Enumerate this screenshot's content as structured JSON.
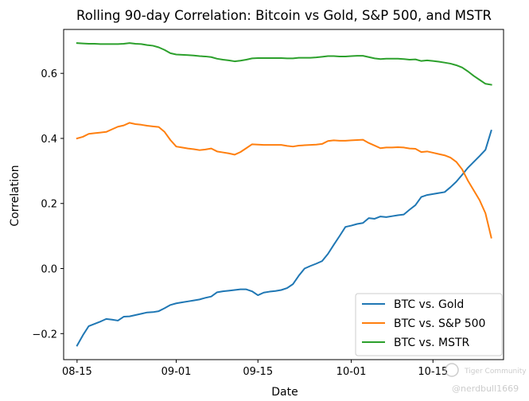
{
  "chart_data": {
    "type": "line",
    "title": "Rolling 90-day Correlation: Bitcoin vs Gold, S&P 500, and MSTR",
    "xlabel": "Date",
    "ylabel": "Correlation",
    "xlim": [
      -2.3,
      73.1
    ],
    "ylim": [
      -0.28,
      0.735
    ],
    "xticks": [
      {
        "value": 0,
        "label": "08-15"
      },
      {
        "value": 17,
        "label": "09-01"
      },
      {
        "value": 31,
        "label": "09-15"
      },
      {
        "value": 47,
        "label": "10-01"
      },
      {
        "value": 61,
        "label": "10-15"
      }
    ],
    "yticks": [
      {
        "value": -0.2,
        "label": "−0.2"
      },
      {
        "value": 0.0,
        "label": "0.0"
      },
      {
        "value": 0.2,
        "label": "0.2"
      },
      {
        "value": 0.4,
        "label": "0.4"
      },
      {
        "value": 0.6,
        "label": "0.6"
      }
    ],
    "legend_position": "lower-right",
    "series": [
      {
        "name": "BTC vs. Gold",
        "color": "#1f77b4",
        "points": [
          [
            0,
            -0.237
          ],
          [
            1,
            -0.205
          ],
          [
            2,
            -0.177
          ],
          [
            3,
            -0.17
          ],
          [
            4,
            -0.163
          ],
          [
            5,
            -0.155
          ],
          [
            6,
            -0.157
          ],
          [
            7,
            -0.16
          ],
          [
            8,
            -0.148
          ],
          [
            9,
            -0.147
          ],
          [
            10,
            -0.143
          ],
          [
            11,
            -0.139
          ],
          [
            12,
            -0.135
          ],
          [
            13,
            -0.134
          ],
          [
            14,
            -0.131
          ],
          [
            15,
            -0.122
          ],
          [
            16,
            -0.112
          ],
          [
            17,
            -0.107
          ],
          [
            18,
            -0.104
          ],
          [
            19,
            -0.101
          ],
          [
            20,
            -0.098
          ],
          [
            21,
            -0.095
          ],
          [
            22,
            -0.09
          ],
          [
            23,
            -0.086
          ],
          [
            24,
            -0.073
          ],
          [
            25,
            -0.07
          ],
          [
            26,
            -0.068
          ],
          [
            27,
            -0.066
          ],
          [
            28,
            -0.064
          ],
          [
            29,
            -0.064
          ],
          [
            30,
            -0.07
          ],
          [
            31,
            -0.082
          ],
          [
            32,
            -0.074
          ],
          [
            33,
            -0.071
          ],
          [
            34,
            -0.069
          ],
          [
            35,
            -0.066
          ],
          [
            36,
            -0.06
          ],
          [
            37,
            -0.048
          ],
          [
            38,
            -0.022
          ],
          [
            39,
            0.0
          ],
          [
            40,
            0.008
          ],
          [
            41,
            0.015
          ],
          [
            42,
            0.023
          ],
          [
            43,
            0.045
          ],
          [
            44,
            0.073
          ],
          [
            45,
            0.1
          ],
          [
            46,
            0.128
          ],
          [
            47,
            0.132
          ],
          [
            48,
            0.137
          ],
          [
            49,
            0.14
          ],
          [
            50,
            0.155
          ],
          [
            51,
            0.153
          ],
          [
            52,
            0.16
          ],
          [
            53,
            0.158
          ],
          [
            54,
            0.161
          ],
          [
            55,
            0.164
          ],
          [
            56,
            0.166
          ],
          [
            57,
            0.181
          ],
          [
            58,
            0.195
          ],
          [
            59,
            0.22
          ],
          [
            60,
            0.226
          ],
          [
            61,
            0.229
          ],
          [
            62,
            0.232
          ],
          [
            63,
            0.235
          ],
          [
            64,
            0.25
          ],
          [
            65,
            0.267
          ],
          [
            66,
            0.288
          ],
          [
            67,
            0.31
          ],
          [
            68,
            0.328
          ],
          [
            69,
            0.346
          ],
          [
            70,
            0.365
          ],
          [
            71,
            0.424
          ]
        ]
      },
      {
        "name": "BTC vs. S&P 500",
        "color": "#ff7f0e",
        "points": [
          [
            0,
            0.4
          ],
          [
            1,
            0.405
          ],
          [
            2,
            0.414
          ],
          [
            3,
            0.416
          ],
          [
            4,
            0.418
          ],
          [
            5,
            0.42
          ],
          [
            6,
            0.428
          ],
          [
            7,
            0.436
          ],
          [
            8,
            0.44
          ],
          [
            9,
            0.448
          ],
          [
            10,
            0.444
          ],
          [
            11,
            0.442
          ],
          [
            12,
            0.439
          ],
          [
            13,
            0.437
          ],
          [
            14,
            0.435
          ],
          [
            15,
            0.42
          ],
          [
            16,
            0.395
          ],
          [
            17,
            0.375
          ],
          [
            18,
            0.372
          ],
          [
            19,
            0.369
          ],
          [
            20,
            0.367
          ],
          [
            21,
            0.364
          ],
          [
            22,
            0.366
          ],
          [
            23,
            0.369
          ],
          [
            24,
            0.36
          ],
          [
            25,
            0.357
          ],
          [
            26,
            0.354
          ],
          [
            27,
            0.35
          ],
          [
            28,
            0.358
          ],
          [
            29,
            0.37
          ],
          [
            30,
            0.382
          ],
          [
            31,
            0.381
          ],
          [
            32,
            0.38
          ],
          [
            33,
            0.38
          ],
          [
            34,
            0.38
          ],
          [
            35,
            0.38
          ],
          [
            36,
            0.377
          ],
          [
            37,
            0.375
          ],
          [
            38,
            0.378
          ],
          [
            39,
            0.379
          ],
          [
            40,
            0.38
          ],
          [
            41,
            0.381
          ],
          [
            42,
            0.383
          ],
          [
            43,
            0.392
          ],
          [
            44,
            0.394
          ],
          [
            45,
            0.393
          ],
          [
            46,
            0.393
          ],
          [
            47,
            0.394
          ],
          [
            48,
            0.395
          ],
          [
            49,
            0.396
          ],
          [
            50,
            0.386
          ],
          [
            51,
            0.378
          ],
          [
            52,
            0.37
          ],
          [
            53,
            0.372
          ],
          [
            54,
            0.372
          ],
          [
            55,
            0.373
          ],
          [
            56,
            0.372
          ],
          [
            57,
            0.369
          ],
          [
            58,
            0.368
          ],
          [
            59,
            0.358
          ],
          [
            60,
            0.36
          ],
          [
            61,
            0.356
          ],
          [
            62,
            0.352
          ],
          [
            63,
            0.348
          ],
          [
            64,
            0.341
          ],
          [
            65,
            0.328
          ],
          [
            66,
            0.305
          ],
          [
            67,
            0.27
          ],
          [
            68,
            0.24
          ],
          [
            69,
            0.21
          ],
          [
            70,
            0.17
          ],
          [
            71,
            0.095
          ]
        ]
      },
      {
        "name": "BTC vs. MSTR",
        "color": "#2ca02c",
        "points": [
          [
            0,
            0.693
          ],
          [
            1,
            0.692
          ],
          [
            2,
            0.691
          ],
          [
            3,
            0.691
          ],
          [
            4,
            0.69
          ],
          [
            5,
            0.69
          ],
          [
            6,
            0.69
          ],
          [
            7,
            0.69
          ],
          [
            8,
            0.691
          ],
          [
            9,
            0.693
          ],
          [
            10,
            0.691
          ],
          [
            11,
            0.69
          ],
          [
            12,
            0.687
          ],
          [
            13,
            0.685
          ],
          [
            14,
            0.68
          ],
          [
            15,
            0.672
          ],
          [
            16,
            0.662
          ],
          [
            17,
            0.658
          ],
          [
            18,
            0.657
          ],
          [
            19,
            0.656
          ],
          [
            20,
            0.655
          ],
          [
            21,
            0.653
          ],
          [
            22,
            0.652
          ],
          [
            23,
            0.65
          ],
          [
            24,
            0.645
          ],
          [
            25,
            0.642
          ],
          [
            26,
            0.64
          ],
          [
            27,
            0.637
          ],
          [
            28,
            0.639
          ],
          [
            29,
            0.642
          ],
          [
            30,
            0.646
          ],
          [
            31,
            0.647
          ],
          [
            32,
            0.647
          ],
          [
            33,
            0.647
          ],
          [
            34,
            0.647
          ],
          [
            35,
            0.647
          ],
          [
            36,
            0.646
          ],
          [
            37,
            0.646
          ],
          [
            38,
            0.648
          ],
          [
            39,
            0.648
          ],
          [
            40,
            0.648
          ],
          [
            41,
            0.649
          ],
          [
            42,
            0.651
          ],
          [
            43,
            0.653
          ],
          [
            44,
            0.653
          ],
          [
            45,
            0.652
          ],
          [
            46,
            0.652
          ],
          [
            47,
            0.653
          ],
          [
            48,
            0.654
          ],
          [
            49,
            0.654
          ],
          [
            50,
            0.65
          ],
          [
            51,
            0.646
          ],
          [
            52,
            0.644
          ],
          [
            53,
            0.645
          ],
          [
            54,
            0.645
          ],
          [
            55,
            0.645
          ],
          [
            56,
            0.644
          ],
          [
            57,
            0.642
          ],
          [
            58,
            0.643
          ],
          [
            59,
            0.638
          ],
          [
            60,
            0.64
          ],
          [
            61,
            0.638
          ],
          [
            62,
            0.636
          ],
          [
            63,
            0.633
          ],
          [
            64,
            0.63
          ],
          [
            65,
            0.625
          ],
          [
            66,
            0.618
          ],
          [
            67,
            0.606
          ],
          [
            68,
            0.592
          ],
          [
            69,
            0.58
          ],
          [
            70,
            0.568
          ],
          [
            71,
            0.565
          ]
        ]
      }
    ]
  },
  "watermark": {
    "community": "Tiger Community",
    "handle": "@nerdbull1669"
  }
}
